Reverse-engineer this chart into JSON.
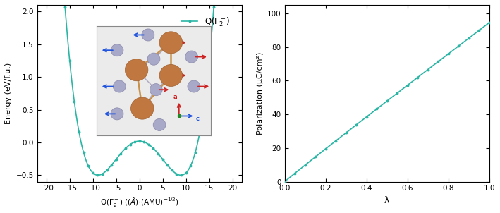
{
  "line_color": "#2ab5a5",
  "markersize": 2.8,
  "linewidth": 1.2,
  "left_xlim": [
    -22,
    22
  ],
  "left_ylim": [
    -0.6,
    2.1
  ],
  "left_xticks": [
    -20,
    -15,
    -10,
    -5,
    0,
    5,
    10,
    15,
    20
  ],
  "left_yticks": [
    -0.5,
    0.0,
    0.5,
    1.0,
    1.5,
    2.0
  ],
  "left_ylabel": "Energy (eV/f.u.)",
  "legend_label": "Q(Γ₂⁻)",
  "right_xlim": [
    0,
    1.0
  ],
  "right_ylim": [
    0,
    105
  ],
  "right_xticks": [
    0.0,
    0.2,
    0.4,
    0.6,
    0.8,
    1.0
  ],
  "right_yticks": [
    0,
    20,
    40,
    60,
    80,
    100
  ],
  "right_xlabel": "λ",
  "right_ylabel": "Polarization (μC/cm²)",
  "background_color": "#ffffff",
  "a_coeff": 0.000527,
  "b_coeff": -0.010541,
  "c_coeff": 0.02,
  "pol_scale": 94.5
}
